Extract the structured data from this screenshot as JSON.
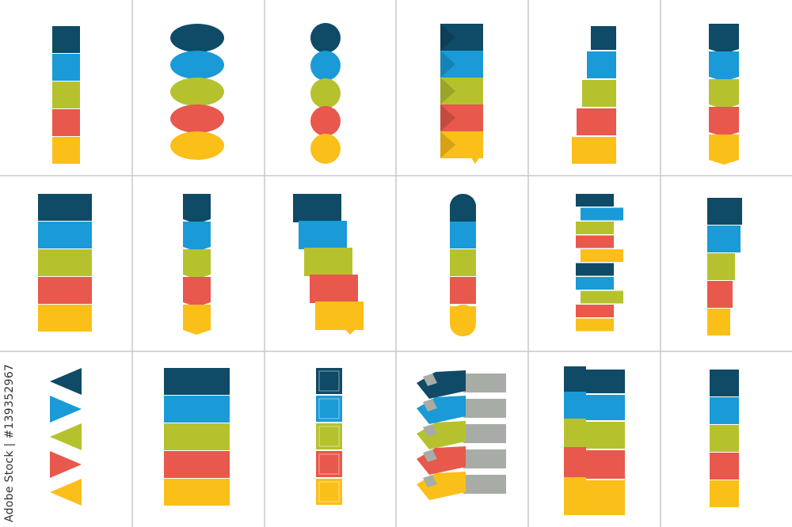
{
  "credit": {
    "brand": "Adobe Stock",
    "separator": "|",
    "id": "#139352967"
  },
  "palette": {
    "dark_teal": "#0f4a66",
    "blue": "#1a9ad6",
    "olive": "#b5c22e",
    "red": "#e8584c",
    "yellow": "#fbbf1a",
    "gray_label": "#a8aca6",
    "grid_line": "#c8c8c8"
  },
  "grid": {
    "columns": 6,
    "rows": 3
  }
}
